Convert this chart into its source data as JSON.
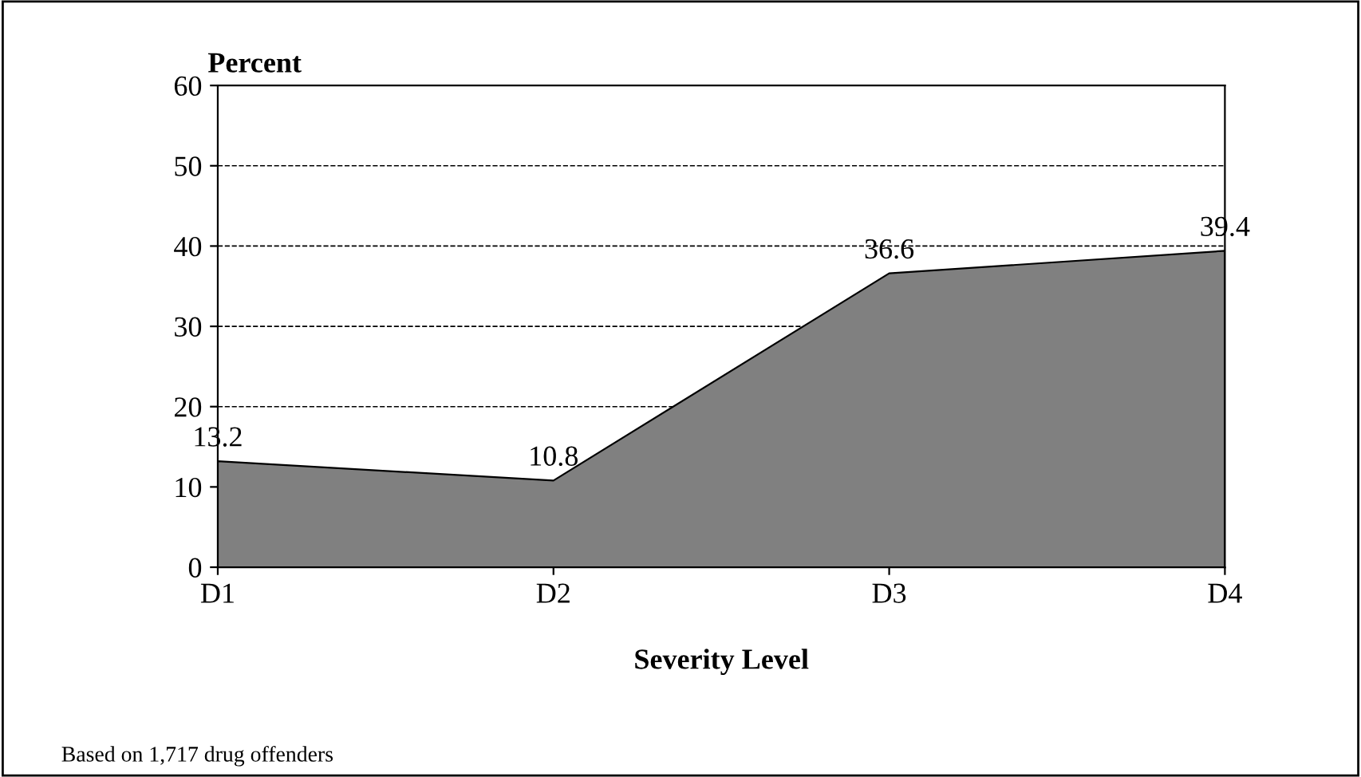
{
  "chart_data": {
    "type": "area",
    "ylabel": "Percent",
    "xlabel": "Severity Level",
    "categories": [
      "D1",
      "D2",
      "D3",
      "D4"
    ],
    "series": [
      {
        "color": "#808080",
        "values": [
          13.2,
          10.8,
          36.6,
          39.4
        ]
      }
    ],
    "ylim": [
      0,
      60
    ],
    "yticks": [
      0,
      10,
      20,
      30,
      40,
      50,
      60
    ],
    "grid": "y",
    "data_labels": true,
    "annotations": [
      "Based on 1,717 drug offenders"
    ]
  }
}
